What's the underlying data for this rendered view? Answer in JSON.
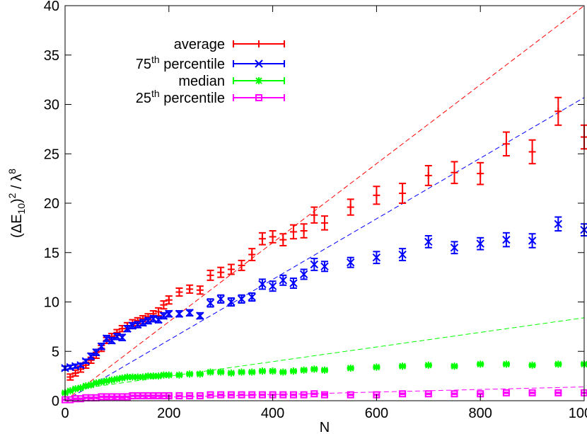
{
  "chart_data": {
    "type": "scatter",
    "title": "",
    "xlabel": "N",
    "ylabel": "(ΔE10)2 / λ8",
    "ylabel_parts": {
      "open": "(ΔE",
      "sub": "10",
      "close": ")",
      "sup1": "2",
      "mid": " / λ",
      "sup2": "8"
    },
    "xlim": [
      0,
      1000
    ],
    "ylim": [
      0,
      40
    ],
    "xticks": [
      0,
      200,
      400,
      600,
      800,
      1000
    ],
    "yticks": [
      0,
      5,
      10,
      15,
      20,
      25,
      30,
      35,
      40
    ],
    "grid": false,
    "legend_position": "top-left",
    "series": [
      {
        "name": "average",
        "legend": {
          "text": "average"
        },
        "color": "#ff0000",
        "marker": "plus",
        "points": [
          [
            10,
            2.4,
            0.3
          ],
          [
            20,
            2.8,
            0.3
          ],
          [
            30,
            3.2,
            0.3
          ],
          [
            40,
            3.6,
            0.3
          ],
          [
            50,
            4.1,
            0.3
          ],
          [
            60,
            4.6,
            0.3
          ],
          [
            70,
            5.3,
            0.3
          ],
          [
            80,
            6.1,
            0.3
          ],
          [
            90,
            6.5,
            0.3
          ],
          [
            100,
            6.9,
            0.3
          ],
          [
            110,
            7.3,
            0.3
          ],
          [
            120,
            7.6,
            0.3
          ],
          [
            130,
            7.9,
            0.3
          ],
          [
            140,
            8.1,
            0.3
          ],
          [
            150,
            8.3,
            0.3
          ],
          [
            160,
            8.5,
            0.3
          ],
          [
            170,
            8.8,
            0.3
          ],
          [
            180,
            9.0,
            0.4
          ],
          [
            190,
            9.7,
            0.4
          ],
          [
            200,
            10.2,
            0.4
          ],
          [
            220,
            11.0,
            0.4
          ],
          [
            240,
            11.3,
            0.4
          ],
          [
            260,
            11.2,
            0.4
          ],
          [
            280,
            12.7,
            0.5
          ],
          [
            300,
            13.0,
            0.5
          ],
          [
            320,
            13.3,
            0.5
          ],
          [
            340,
            13.7,
            0.5
          ],
          [
            360,
            14.8,
            0.6
          ],
          [
            380,
            16.4,
            0.6
          ],
          [
            400,
            16.6,
            0.6
          ],
          [
            420,
            16.3,
            0.6
          ],
          [
            440,
            17.1,
            0.7
          ],
          [
            460,
            17.2,
            0.7
          ],
          [
            480,
            18.8,
            0.8
          ],
          [
            500,
            18.0,
            0.7
          ],
          [
            550,
            19.6,
            0.8
          ],
          [
            600,
            20.8,
            0.9
          ],
          [
            650,
            21.0,
            1.0
          ],
          [
            700,
            22.8,
            1.0
          ],
          [
            750,
            23.1,
            1.1
          ],
          [
            800,
            23.0,
            1.1
          ],
          [
            850,
            26.0,
            1.2
          ],
          [
            900,
            25.2,
            1.2
          ],
          [
            950,
            29.3,
            1.4
          ],
          [
            1000,
            26.7,
            1.2
          ]
        ]
      },
      {
        "name": "75th percentile",
        "legend": {
          "pre": "75",
          "sup": "th",
          "post": " percentile"
        },
        "color": "#0000ff",
        "marker": "x",
        "points": [
          [
            0,
            3.3,
            0.2
          ],
          [
            10,
            3.4,
            0.2
          ],
          [
            20,
            3.5,
            0.2
          ],
          [
            30,
            3.6,
            0.2
          ],
          [
            40,
            4.0,
            0.2
          ],
          [
            50,
            4.5,
            0.3
          ],
          [
            60,
            4.9,
            0.3
          ],
          [
            70,
            5.5,
            0.3
          ],
          [
            80,
            6.3,
            0.3
          ],
          [
            90,
            6.1,
            0.3
          ],
          [
            100,
            6.5,
            0.3
          ],
          [
            110,
            6.4,
            0.3
          ],
          [
            120,
            7.3,
            0.3
          ],
          [
            130,
            7.6,
            0.3
          ],
          [
            140,
            7.7,
            0.3
          ],
          [
            150,
            7.9,
            0.3
          ],
          [
            160,
            8.1,
            0.3
          ],
          [
            170,
            8.3,
            0.3
          ],
          [
            180,
            8.2,
            0.3
          ],
          [
            190,
            8.6,
            0.3
          ],
          [
            200,
            8.8,
            0.3
          ],
          [
            220,
            8.8,
            0.3
          ],
          [
            240,
            8.9,
            0.3
          ],
          [
            260,
            8.6,
            0.3
          ],
          [
            280,
            9.9,
            0.4
          ],
          [
            300,
            10.3,
            0.4
          ],
          [
            320,
            10.0,
            0.4
          ],
          [
            340,
            10.3,
            0.4
          ],
          [
            360,
            10.5,
            0.4
          ],
          [
            380,
            11.8,
            0.5
          ],
          [
            400,
            11.6,
            0.5
          ],
          [
            420,
            12.2,
            0.5
          ],
          [
            440,
            11.9,
            0.5
          ],
          [
            460,
            12.8,
            0.5
          ],
          [
            480,
            13.8,
            0.6
          ],
          [
            500,
            13.6,
            0.5
          ],
          [
            550,
            14.0,
            0.5
          ],
          [
            600,
            14.5,
            0.6
          ],
          [
            650,
            14.8,
            0.6
          ],
          [
            700,
            16.1,
            0.6
          ],
          [
            750,
            15.5,
            0.6
          ],
          [
            800,
            15.9,
            0.6
          ],
          [
            850,
            16.3,
            0.7
          ],
          [
            900,
            16.2,
            0.7
          ],
          [
            950,
            17.9,
            0.7
          ],
          [
            1000,
            17.3,
            0.6
          ]
        ]
      },
      {
        "name": "median",
        "legend": {
          "text": "median"
        },
        "color": "#00ff00",
        "marker": "star",
        "points": [
          [
            0,
            0.8,
            0.1
          ],
          [
            10,
            1.0,
            0.1
          ],
          [
            20,
            1.2,
            0.1
          ],
          [
            30,
            1.3,
            0.1
          ],
          [
            40,
            1.5,
            0.1
          ],
          [
            50,
            1.6,
            0.1
          ],
          [
            60,
            1.8,
            0.1
          ],
          [
            70,
            1.9,
            0.1
          ],
          [
            80,
            2.0,
            0.1
          ],
          [
            90,
            2.1,
            0.1
          ],
          [
            100,
            2.2,
            0.1
          ],
          [
            110,
            2.3,
            0.1
          ],
          [
            120,
            2.4,
            0.1
          ],
          [
            130,
            2.4,
            0.1
          ],
          [
            140,
            2.4,
            0.1
          ],
          [
            150,
            2.4,
            0.1
          ],
          [
            160,
            2.5,
            0.1
          ],
          [
            170,
            2.5,
            0.1
          ],
          [
            180,
            2.5,
            0.1
          ],
          [
            190,
            2.6,
            0.1
          ],
          [
            200,
            2.6,
            0.1
          ],
          [
            220,
            2.6,
            0.1
          ],
          [
            240,
            2.7,
            0.1
          ],
          [
            260,
            2.7,
            0.1
          ],
          [
            280,
            2.9,
            0.1
          ],
          [
            300,
            2.9,
            0.1
          ],
          [
            320,
            2.8,
            0.1
          ],
          [
            340,
            2.9,
            0.1
          ],
          [
            360,
            2.9,
            0.1
          ],
          [
            380,
            3.0,
            0.1
          ],
          [
            400,
            3.0,
            0.1
          ],
          [
            420,
            2.9,
            0.1
          ],
          [
            440,
            3.0,
            0.1
          ],
          [
            460,
            3.1,
            0.1
          ],
          [
            480,
            3.2,
            0.1
          ],
          [
            500,
            3.1,
            0.1
          ],
          [
            550,
            3.3,
            0.1
          ],
          [
            600,
            3.4,
            0.1
          ],
          [
            650,
            3.5,
            0.1
          ],
          [
            700,
            3.6,
            0.1
          ],
          [
            750,
            3.5,
            0.1
          ],
          [
            800,
            3.7,
            0.1
          ],
          [
            850,
            3.7,
            0.1
          ],
          [
            900,
            3.6,
            0.1
          ],
          [
            950,
            3.7,
            0.1
          ],
          [
            1000,
            3.7,
            0.1
          ]
        ]
      },
      {
        "name": "25th percentile",
        "legend": {
          "pre": "25",
          "sup": "th",
          "post": " percentile"
        },
        "color": "#ff00ff",
        "marker": "square",
        "points": [
          [
            0,
            0.1,
            0.05
          ],
          [
            10,
            0.1,
            0.05
          ],
          [
            20,
            0.2,
            0.05
          ],
          [
            30,
            0.2,
            0.05
          ],
          [
            40,
            0.3,
            0.05
          ],
          [
            50,
            0.3,
            0.05
          ],
          [
            60,
            0.3,
            0.05
          ],
          [
            70,
            0.4,
            0.05
          ],
          [
            80,
            0.4,
            0.05
          ],
          [
            90,
            0.4,
            0.05
          ],
          [
            100,
            0.4,
            0.05
          ],
          [
            110,
            0.4,
            0.05
          ],
          [
            120,
            0.4,
            0.05
          ],
          [
            130,
            0.5,
            0.05
          ],
          [
            140,
            0.5,
            0.05
          ],
          [
            150,
            0.5,
            0.05
          ],
          [
            160,
            0.5,
            0.05
          ],
          [
            170,
            0.5,
            0.05
          ],
          [
            180,
            0.5,
            0.05
          ],
          [
            190,
            0.5,
            0.05
          ],
          [
            200,
            0.5,
            0.05
          ],
          [
            220,
            0.5,
            0.05
          ],
          [
            240,
            0.5,
            0.05
          ],
          [
            260,
            0.5,
            0.05
          ],
          [
            280,
            0.6,
            0.05
          ],
          [
            300,
            0.6,
            0.05
          ],
          [
            320,
            0.6,
            0.05
          ],
          [
            340,
            0.6,
            0.05
          ],
          [
            360,
            0.6,
            0.05
          ],
          [
            380,
            0.6,
            0.05
          ],
          [
            400,
            0.6,
            0.05
          ],
          [
            420,
            0.6,
            0.05
          ],
          [
            440,
            0.6,
            0.05
          ],
          [
            460,
            0.6,
            0.05
          ],
          [
            480,
            0.7,
            0.05
          ],
          [
            500,
            0.6,
            0.05
          ],
          [
            550,
            0.6,
            0.05
          ],
          [
            600,
            0.6,
            0.05
          ],
          [
            650,
            0.7,
            0.05
          ],
          [
            700,
            0.7,
            0.05
          ],
          [
            750,
            0.7,
            0.05
          ],
          [
            800,
            0.7,
            0.05
          ],
          [
            850,
            0.8,
            0.05
          ],
          [
            900,
            0.8,
            0.05
          ],
          [
            950,
            0.8,
            0.05
          ],
          [
            1000,
            0.8,
            0.05
          ]
        ]
      }
    ],
    "fit_lines": [
      {
        "color": "#ff0000",
        "points": [
          [
            0,
            0.0
          ],
          [
            1000,
            40.0
          ]
        ]
      },
      {
        "color": "#0000ff",
        "points": [
          [
            0,
            0.0
          ],
          [
            1000,
            30.7
          ]
        ]
      },
      {
        "color": "#00ff00",
        "points": [
          [
            0,
            1.0
          ],
          [
            1000,
            8.4
          ]
        ]
      },
      {
        "color": "#ff00ff",
        "points": [
          [
            0,
            0.1
          ],
          [
            1000,
            1.4
          ]
        ]
      }
    ]
  }
}
